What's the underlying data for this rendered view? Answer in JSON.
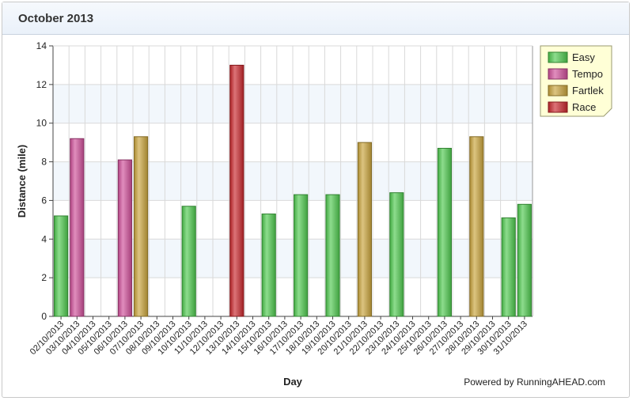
{
  "page": {
    "title": "October 2013",
    "footer": "Powered by RunningAHEAD.com"
  },
  "colors": {
    "Easy": "#4fc94f",
    "Tempo": "#d0509a",
    "Fartlek": "#c9a43c",
    "Race": "#c9282d"
  },
  "chart_data": {
    "type": "bar",
    "title": "October 2013",
    "xlabel": "Day",
    "ylabel": "Distance (mile)",
    "ylim": [
      0,
      14
    ],
    "yticks": [
      0,
      2,
      4,
      6,
      8,
      10,
      12,
      14
    ],
    "legend": {
      "position": "top-right",
      "entries": [
        "Easy",
        "Tempo",
        "Fartlek",
        "Race"
      ]
    },
    "categories": [
      "02/10/2013",
      "03/10/2013",
      "04/10/2013",
      "05/10/2013",
      "06/10/2013",
      "07/10/2013",
      "08/10/2013",
      "09/10/2013",
      "10/10/2013",
      "11/10/2013",
      "12/10/2013",
      "13/10/2013",
      "14/10/2013",
      "15/10/2013",
      "16/10/2013",
      "17/10/2013",
      "18/10/2013",
      "19/10/2013",
      "20/10/2013",
      "21/10/2013",
      "22/10/2013",
      "23/10/2013",
      "24/10/2013",
      "25/10/2013",
      "26/10/2013",
      "27/10/2013",
      "28/10/2013",
      "29/10/2013",
      "30/10/2013",
      "31/10/2013"
    ],
    "bars": [
      {
        "category": "02/10/2013",
        "value": 5.2,
        "type": "Easy"
      },
      {
        "category": "03/10/2013",
        "value": 9.2,
        "type": "Tempo"
      },
      {
        "category": "06/10/2013",
        "value": 8.1,
        "type": "Tempo"
      },
      {
        "category": "07/10/2013",
        "value": 9.3,
        "type": "Fartlek"
      },
      {
        "category": "10/10/2013",
        "value": 5.7,
        "type": "Easy"
      },
      {
        "category": "13/10/2013",
        "value": 13.0,
        "type": "Race"
      },
      {
        "category": "15/10/2013",
        "value": 5.3,
        "type": "Easy"
      },
      {
        "category": "17/10/2013",
        "value": 6.3,
        "type": "Easy"
      },
      {
        "category": "19/10/2013",
        "value": 6.3,
        "type": "Easy"
      },
      {
        "category": "21/10/2013",
        "value": 9.0,
        "type": "Fartlek"
      },
      {
        "category": "23/10/2013",
        "value": 6.4,
        "type": "Easy"
      },
      {
        "category": "26/10/2013",
        "value": 8.7,
        "type": "Easy"
      },
      {
        "category": "28/10/2013",
        "value": 9.3,
        "type": "Fartlek"
      },
      {
        "category": "30/10/2013",
        "value": 5.1,
        "type": "Easy"
      },
      {
        "category": "31/10/2013",
        "value": 5.8,
        "type": "Easy"
      }
    ],
    "grid": true
  }
}
